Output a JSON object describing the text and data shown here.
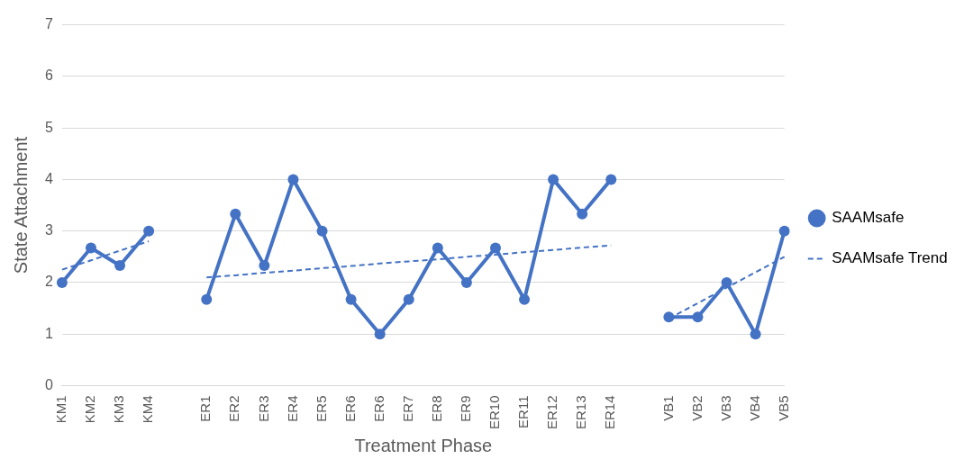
{
  "chart_data": {
    "type": "line",
    "xlabel": "Treatment Phase",
    "ylabel": "State Attachment",
    "categories": [
      "KM1",
      "KM2",
      "KM3",
      "KM4",
      null,
      "ER1",
      "ER2",
      "ER3",
      "ER4",
      "ER5",
      "ER6",
      "ER6",
      "ER7",
      "ER8",
      "ER9",
      "ER10",
      "ER11",
      "ER12",
      "ER13",
      "ER14",
      null,
      "VB1",
      "VB2",
      "VB3",
      "VB4",
      "VB5"
    ],
    "series": [
      {
        "name": "SAAMsafe",
        "color": "#4472c4",
        "marker": "circle",
        "line_style": "solid",
        "values": [
          2,
          2.67,
          2.33,
          3,
          null,
          1.67,
          3.33,
          2.33,
          4,
          3,
          1.67,
          1,
          1.67,
          2.67,
          2,
          2.67,
          1.67,
          4,
          3.33,
          4,
          null,
          1.33,
          1.33,
          2,
          1,
          3
        ]
      },
      {
        "name": "SAAMsafe Trend",
        "color": "#4472c4",
        "marker": "none",
        "line_style": "dashed",
        "values": [
          2.25,
          2.43,
          2.62,
          2.8,
          null,
          2.1,
          2.14,
          2.19,
          2.23,
          2.28,
          2.32,
          2.37,
          2.41,
          2.45,
          2.5,
          2.54,
          2.59,
          2.63,
          2.68,
          2.72,
          null,
          1.3,
          1.6,
          1.9,
          2.2,
          2.5
        ]
      }
    ],
    "ylim": [
      0,
      7
    ],
    "yticks": [
      0,
      1,
      2,
      3,
      4,
      5,
      6,
      7
    ],
    "grid": "y",
    "legend": "right"
  }
}
